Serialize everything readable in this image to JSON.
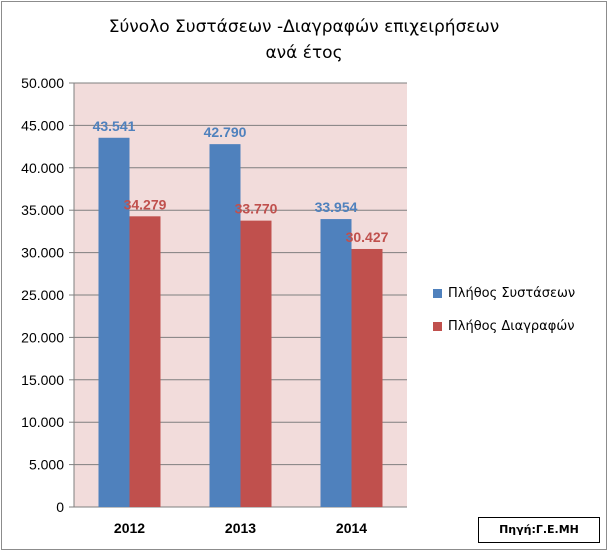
{
  "chart_data": {
    "type": "bar",
    "title_lines": [
      "Σύνολο Συστάσεων -Διαγραφών επιχειρήσεων",
      "ανά έτος"
    ],
    "categories": [
      "2012",
      "2013",
      "2014"
    ],
    "series": [
      {
        "name": "Πλήθος Συστάσεων",
        "values": [
          43541,
          42790,
          33954
        ],
        "labels": [
          "43.541",
          "42.790",
          "33.954"
        ],
        "color": "#4f81bd"
      },
      {
        "name": "Πλήθος Διαγραφών",
        "values": [
          34279,
          33770,
          30427
        ],
        "labels": [
          "34.279",
          "33.770",
          "30.427"
        ],
        "color": "#c0504d"
      }
    ],
    "ylim": [
      0,
      50000
    ],
    "y_ticks": [
      0,
      5000,
      10000,
      15000,
      20000,
      25000,
      30000,
      35000,
      40000,
      45000,
      50000
    ],
    "y_tick_labels": [
      "0",
      "5.000",
      "10.000",
      "15.000",
      "20.000",
      "25.000",
      "30.000",
      "35.000",
      "40.000",
      "45.000",
      "50.000"
    ],
    "grid": true,
    "legend_position": "right",
    "plot_background": "#f2dcdb",
    "source_note": "Πηγή:Γ.Ε.ΜΗ"
  }
}
